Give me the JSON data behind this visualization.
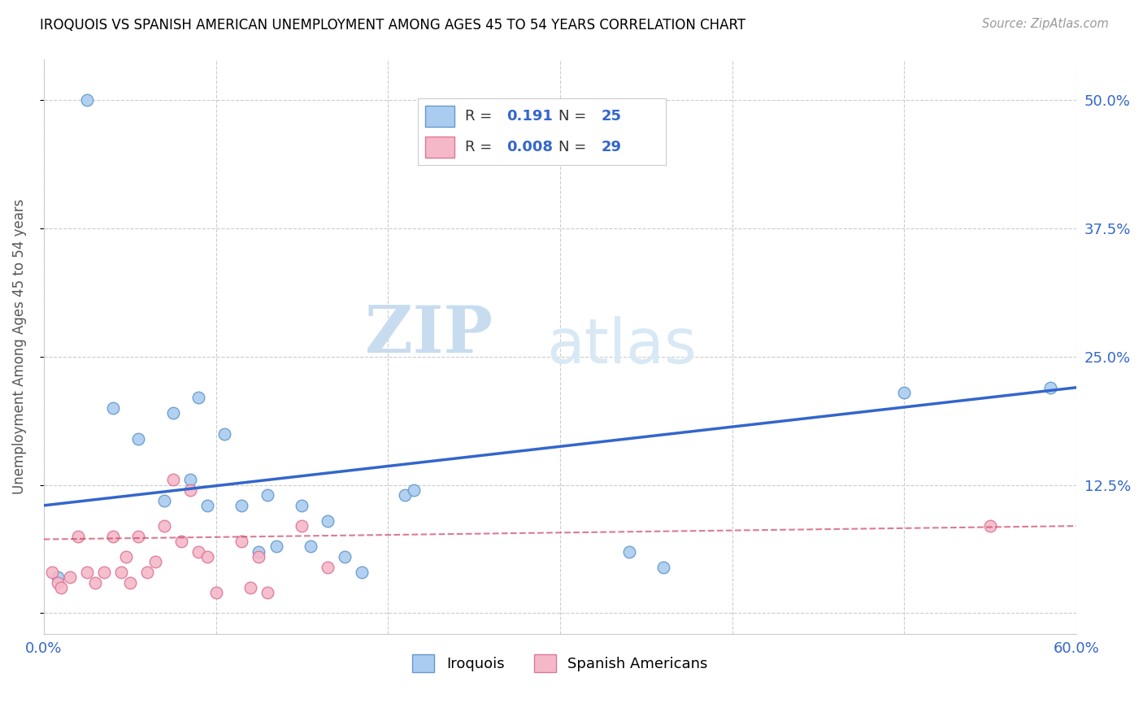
{
  "title": "IROQUOIS VS SPANISH AMERICAN UNEMPLOYMENT AMONG AGES 45 TO 54 YEARS CORRELATION CHART",
  "source": "Source: ZipAtlas.com",
  "ylabel": "Unemployment Among Ages 45 to 54 years",
  "xlim": [
    0.0,
    0.6
  ],
  "ylim": [
    -0.02,
    0.54
  ],
  "xticks": [
    0.0,
    0.1,
    0.2,
    0.3,
    0.4,
    0.5,
    0.6
  ],
  "xticklabels": [
    "0.0%",
    "",
    "",
    "",
    "",
    "",
    "60.0%"
  ],
  "ytick_positions": [
    0.0,
    0.125,
    0.25,
    0.375,
    0.5
  ],
  "yticklabels": [
    "",
    "12.5%",
    "25.0%",
    "37.5%",
    "50.0%"
  ],
  "iroquois_color": "#aaccf0",
  "iroquois_edge_color": "#6699cc",
  "spanish_color": "#f5b8c8",
  "spanish_edge_color": "#dd7799",
  "iroquois_R": "0.191",
  "iroquois_N": "25",
  "spanish_R": "0.008",
  "spanish_N": "29",
  "trend_iroquois_color": "#3366cc",
  "trend_spanish_color": "#cc4466",
  "watermark_zip": "ZIP",
  "watermark_atlas": "atlas",
  "grid_color": "#cccccc",
  "iroquois_x": [
    0.008,
    0.025,
    0.04,
    0.055,
    0.07,
    0.075,
    0.085,
    0.09,
    0.095,
    0.105,
    0.115,
    0.125,
    0.13,
    0.135,
    0.15,
    0.155,
    0.165,
    0.175,
    0.185,
    0.21,
    0.215,
    0.34,
    0.36,
    0.5,
    0.585
  ],
  "iroquois_y": [
    0.035,
    0.5,
    0.2,
    0.17,
    0.11,
    0.195,
    0.13,
    0.21,
    0.105,
    0.175,
    0.105,
    0.06,
    0.115,
    0.065,
    0.105,
    0.065,
    0.09,
    0.055,
    0.04,
    0.115,
    0.12,
    0.06,
    0.045,
    0.215,
    0.22
  ],
  "spanish_x": [
    0.005,
    0.008,
    0.01,
    0.015,
    0.02,
    0.025,
    0.03,
    0.035,
    0.04,
    0.045,
    0.048,
    0.05,
    0.055,
    0.06,
    0.065,
    0.07,
    0.075,
    0.08,
    0.085,
    0.09,
    0.095,
    0.1,
    0.115,
    0.12,
    0.125,
    0.13,
    0.15,
    0.165,
    0.55
  ],
  "spanish_y": [
    0.04,
    0.03,
    0.025,
    0.035,
    0.075,
    0.04,
    0.03,
    0.04,
    0.075,
    0.04,
    0.055,
    0.03,
    0.075,
    0.04,
    0.05,
    0.085,
    0.13,
    0.07,
    0.12,
    0.06,
    0.055,
    0.02,
    0.07,
    0.025,
    0.055,
    0.02,
    0.085,
    0.045,
    0.085
  ],
  "marker_size": 110,
  "legend_color": "#3366cc"
}
